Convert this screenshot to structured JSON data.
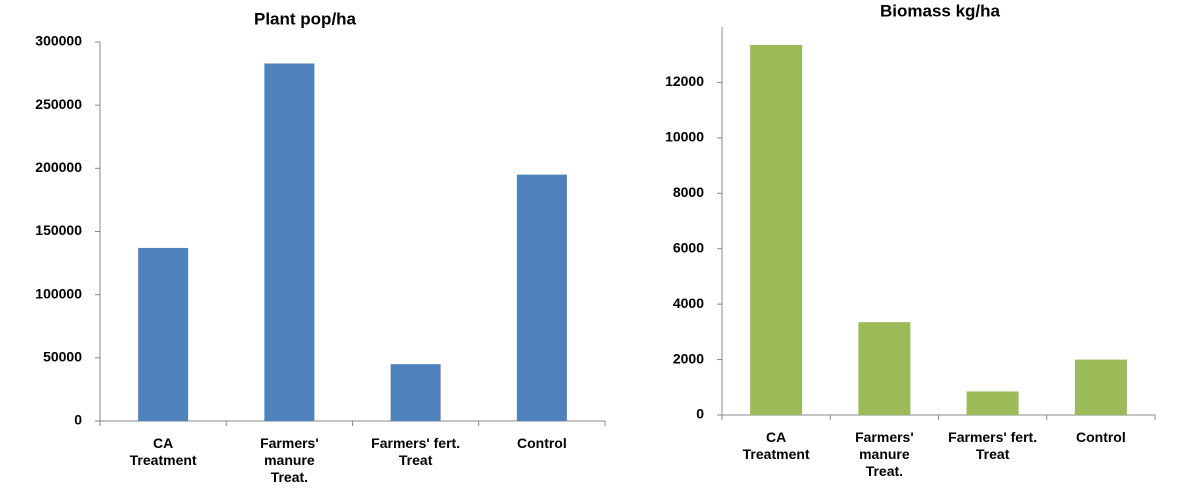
{
  "chart_data": [
    {
      "type": "bar",
      "title": "Plant pop/ha",
      "categories": [
        "CA Treatment",
        "Farmers' manure Treat.",
        "Farmers' fert. Treat",
        "Control"
      ],
      "values": [
        137000,
        283000,
        45000,
        195000
      ],
      "color": "#4f81bd",
      "ylim": [
        0,
        300000
      ],
      "yticks": [
        0,
        50000,
        100000,
        150000,
        200000,
        250000,
        300000
      ],
      "grid": false
    },
    {
      "type": "bar",
      "title": "Biomass kg/ha",
      "categories": [
        "CA Treatment",
        "Farmers' manure Treat.",
        "Farmers' fert. Treat",
        "Control"
      ],
      "values": [
        13350,
        3350,
        850,
        2000
      ],
      "color": "#9bbb59",
      "ylim": [
        0,
        14000
      ],
      "yticks": [
        0,
        2000,
        4000,
        6000,
        8000,
        10000,
        12000
      ],
      "grid": false
    }
  ]
}
